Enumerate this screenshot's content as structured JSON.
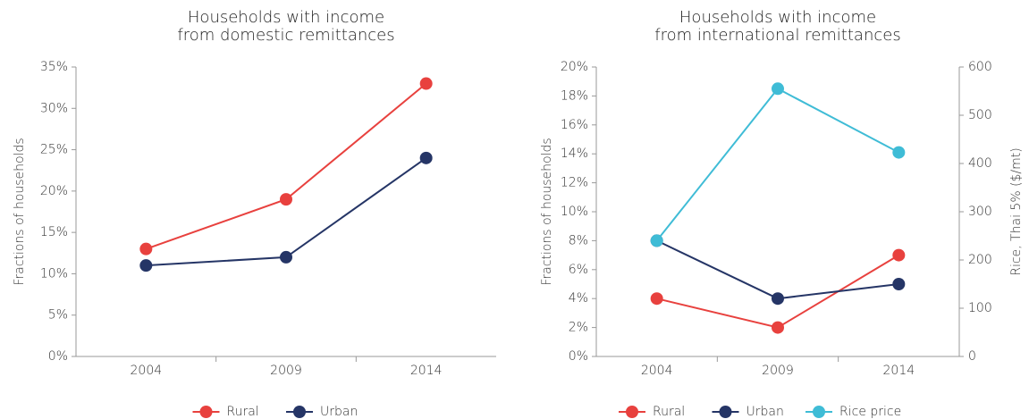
{
  "chart_data": [
    {
      "type": "line",
      "title": [
        "Households with income",
        "from domestic remittances"
      ],
      "categories": [
        "2004",
        "2009",
        "2014"
      ],
      "series": [
        {
          "name": "Rural",
          "color": "#e8413e",
          "values": [
            13,
            19,
            33
          ]
        },
        {
          "name": "Urban",
          "color": "#253566",
          "values": [
            11,
            12,
            24
          ]
        }
      ],
      "ylabel": "Fractions of households",
      "ylim": [
        0,
        35
      ],
      "yticks": [
        {
          "value": 0,
          "label": "0%"
        },
        {
          "value": 5,
          "label": "5%"
        },
        {
          "value": 10,
          "label": "10%"
        },
        {
          "value": 15,
          "label": "15%"
        },
        {
          "value": 20,
          "label": "20%"
        },
        {
          "value": 25,
          "label": "25%"
        },
        {
          "value": 30,
          "label": "30%"
        },
        {
          "value": 35,
          "label": "35%"
        }
      ],
      "grid": false,
      "legend": "bottom"
    },
    {
      "type": "line",
      "title": [
        "Households with income",
        "from international remittances"
      ],
      "categories": [
        "2004",
        "2009",
        "2014"
      ],
      "series": [
        {
          "name": "Rural",
          "color": "#e8413e",
          "values": [
            4,
            2,
            7
          ]
        },
        {
          "name": "Urban",
          "color": "#253566",
          "values": [
            8,
            4,
            5
          ]
        },
        {
          "name": "Rice price",
          "color": "#3fbcd6",
          "values": [
            240,
            555,
            423
          ],
          "axis": "y2"
        }
      ],
      "ylabel": "Fractions of households",
      "y2label": "Rice, Thai 5% ($/mt)",
      "ylim": [
        0,
        20
      ],
      "yticks": [
        {
          "value": 0,
          "label": "0%"
        },
        {
          "value": 2,
          "label": "2%"
        },
        {
          "value": 4,
          "label": "4%"
        },
        {
          "value": 6,
          "label": "6%"
        },
        {
          "value": 8,
          "label": "8%"
        },
        {
          "value": 10,
          "label": "10%"
        },
        {
          "value": 12,
          "label": "12%"
        },
        {
          "value": 14,
          "label": "14%"
        },
        {
          "value": 16,
          "label": "16%"
        },
        {
          "value": 18,
          "label": "18%"
        },
        {
          "value": 20,
          "label": "20%"
        }
      ],
      "y2lim": [
        0,
        600
      ],
      "y2ticks": [
        0,
        100,
        200,
        300,
        400,
        500,
        600
      ],
      "grid": false,
      "legend": "bottom"
    }
  ]
}
